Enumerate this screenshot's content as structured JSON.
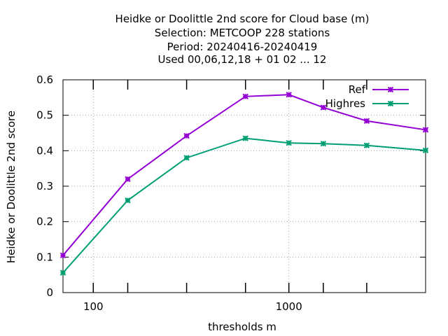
{
  "chart_data": {
    "type": "line",
    "title_lines": [
      "Heidke or Doolittle 2nd score  for Cloud base (m)",
      "Selection: METCOOP    228 stations",
      "Period: 20240416-20240419",
      "Used  00,06,12,18 + 01 02 ... 12"
    ],
    "xlabel": "thresholds m",
    "ylabel": "Heidke or Doolittle 2nd score",
    "x_scale": "log",
    "xlim": [
      70,
      5000
    ],
    "ylim": [
      0,
      0.6
    ],
    "x_tick_labels": [
      {
        "value": 100,
        "label": "100"
      },
      {
        "value": 1000,
        "label": "1000"
      }
    ],
    "x_minor_ticks": [
      150,
      300,
      600,
      1500,
      2500
    ],
    "y_ticks": [
      {
        "value": 0,
        "label": "0"
      },
      {
        "value": 0.1,
        "label": "0.1"
      },
      {
        "value": 0.2,
        "label": "0.2"
      },
      {
        "value": 0.3,
        "label": "0.3"
      },
      {
        "value": 0.4,
        "label": "0.4"
      },
      {
        "value": 0.5,
        "label": "0.5"
      },
      {
        "value": 0.6,
        "label": "0.6"
      }
    ],
    "grid": true,
    "legend_position": "top-right",
    "x": [
      70,
      150,
      300,
      600,
      1000,
      1500,
      2500,
      5000
    ],
    "series": [
      {
        "name": "Ref",
        "color": "#9400d3",
        "values": [
          0.105,
          0.32,
          0.442,
          0.553,
          0.558,
          0.522,
          0.484,
          0.459
        ]
      },
      {
        "name": "Highres",
        "color": "#009e73",
        "values": [
          0.056,
          0.26,
          0.38,
          0.435,
          0.422,
          0.42,
          0.415,
          0.401
        ]
      }
    ]
  }
}
